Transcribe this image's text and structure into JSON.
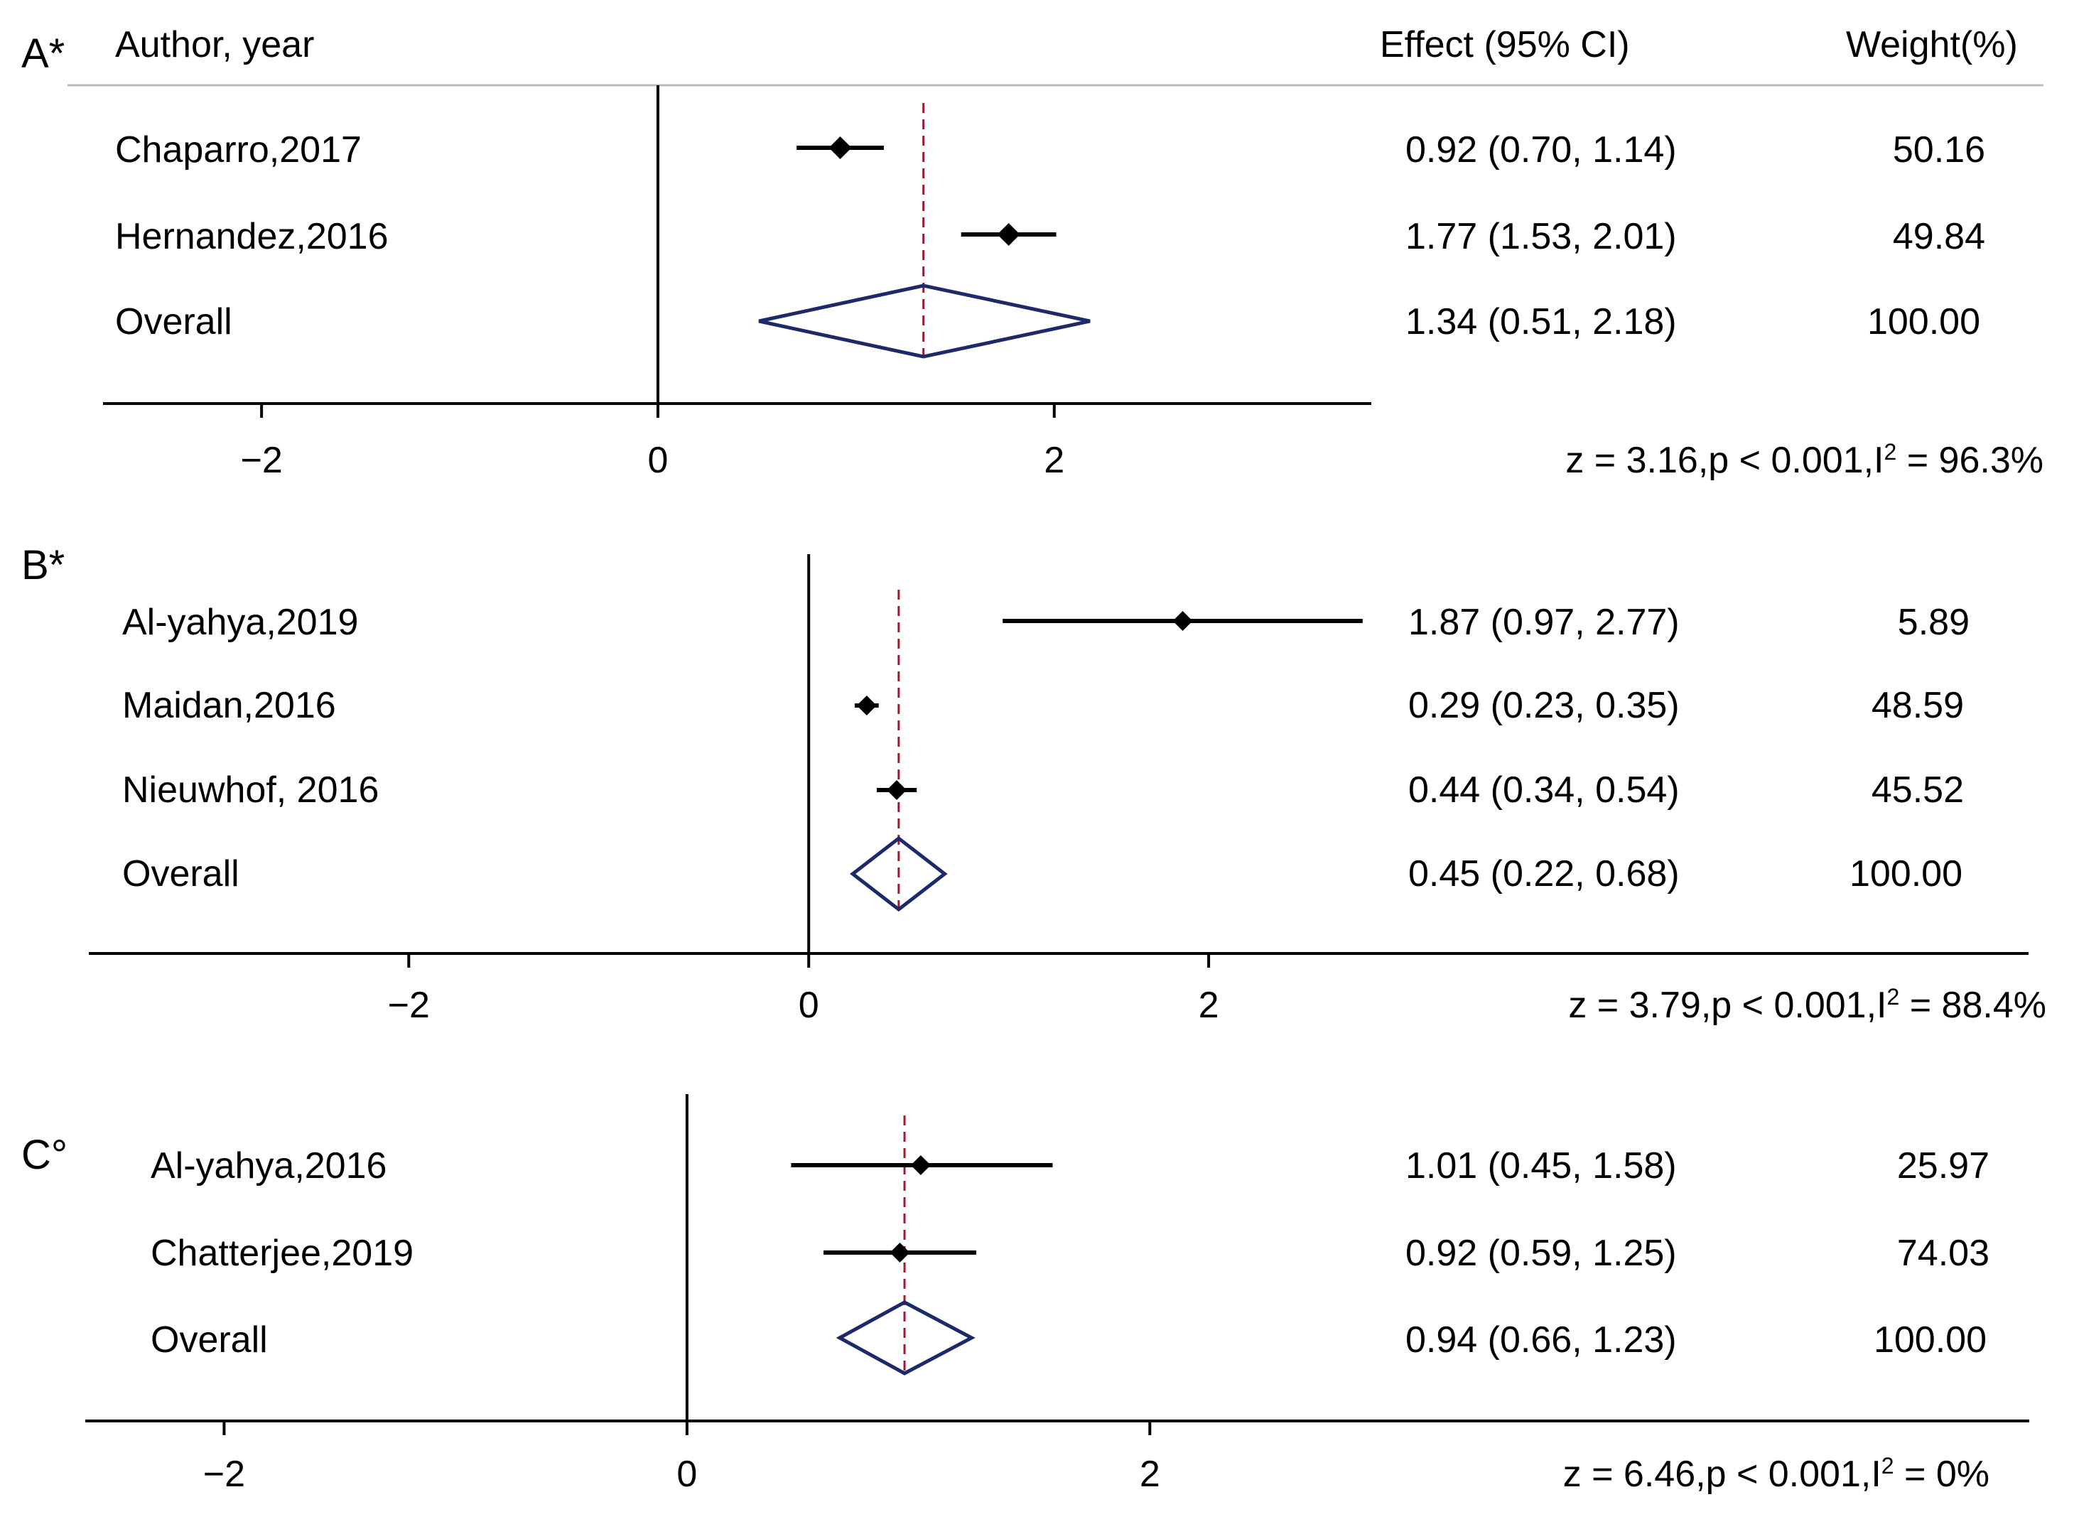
{
  "colors": {
    "text": "#000000",
    "axis": "#000000",
    "ci_line": "#000000",
    "point_marker": "#000000",
    "overall_diamond": "#1c2a6b",
    "reference_line": "#9b1b30",
    "header_rule": "#bdbdbd"
  },
  "header": {
    "author_label": "Author, year",
    "effect_label": "Effect (95% CI)",
    "weight_label": "Weight(%)"
  },
  "chart_data": [
    {
      "type": "forest",
      "panel_label": "A*",
      "xlim": [
        -2.8,
        3.6
      ],
      "xticks": [
        -2,
        0,
        2
      ],
      "xtick_labels": [
        "−2",
        "0",
        "2"
      ],
      "null_line": 0,
      "reference_line": 1.34,
      "studies": [
        {
          "label": "Chaparro,2017",
          "effect": 0.92,
          "lower": 0.7,
          "upper": 1.14,
          "effect_text": "0.92 (0.70, 1.14)",
          "weight": "50.16"
        },
        {
          "label": "Hernandez,2016",
          "effect": 1.77,
          "lower": 1.53,
          "upper": 2.01,
          "effect_text": "1.77 (1.53, 2.01)",
          "weight": "49.84"
        }
      ],
      "overall": {
        "label": "Overall",
        "effect": 1.34,
        "lower": 0.51,
        "upper": 2.18,
        "effect_text": "1.34 (0.51, 2.18)",
        "weight": "100.00"
      },
      "stats_prefix": "z = 3.16,p < 0.001,I",
      "stats_sup": "2",
      "stats_suffix": " = 96.3%"
    },
    {
      "type": "forest",
      "panel_label": "B*",
      "xlim": [
        -3.6,
        6.1
      ],
      "xticks": [
        -2,
        0,
        2
      ],
      "xtick_labels": [
        "−2",
        "0",
        "2"
      ],
      "null_line": 0,
      "reference_line": 0.45,
      "studies": [
        {
          "label": "Al-yahya,2019",
          "effect": 1.87,
          "lower": 0.97,
          "upper": 2.77,
          "effect_text": "1.87 (0.97, 2.77)",
          "weight": "5.89"
        },
        {
          "label": "Maidan,2016",
          "effect": 0.29,
          "lower": 0.23,
          "upper": 0.35,
          "effect_text": "0.29 (0.23, 0.35)",
          "weight": "48.59"
        },
        {
          "label": "Nieuwhof, 2016",
          "effect": 0.44,
          "lower": 0.34,
          "upper": 0.54,
          "effect_text": "0.44 (0.34, 0.54)",
          "weight": "45.52"
        }
      ],
      "overall": {
        "label": "Overall",
        "effect": 0.45,
        "lower": 0.22,
        "upper": 0.68,
        "effect_text": "0.45 (0.22, 0.68)",
        "weight": "100.00"
      },
      "stats_prefix": "z = 3.79,p < 0.001,I",
      "stats_sup": "2",
      "stats_suffix": " = 88.4%"
    },
    {
      "type": "forest",
      "panel_label": "C°",
      "xlim": [
        -2.6,
        5.8
      ],
      "xticks": [
        -2,
        0,
        2
      ],
      "xtick_labels": [
        "−2",
        "0",
        "2"
      ],
      "null_line": 0,
      "reference_line": 0.94,
      "studies": [
        {
          "label": "Al-yahya,2016",
          "effect": 1.01,
          "lower": 0.45,
          "upper": 1.58,
          "effect_text": "1.01 (0.45, 1.58)",
          "weight": "25.97"
        },
        {
          "label": "Chatterjee,2019",
          "effect": 0.92,
          "lower": 0.59,
          "upper": 1.25,
          "effect_text": "0.92 (0.59, 1.25)",
          "weight": "74.03"
        }
      ],
      "overall": {
        "label": "Overall",
        "effect": 0.94,
        "lower": 0.66,
        "upper": 1.23,
        "effect_text": "0.94 (0.66, 1.23)",
        "weight": "100.00"
      },
      "stats_prefix": "z = 6.46,p < 0.001,I",
      "stats_sup": "2",
      "stats_suffix": " = 0%"
    }
  ]
}
